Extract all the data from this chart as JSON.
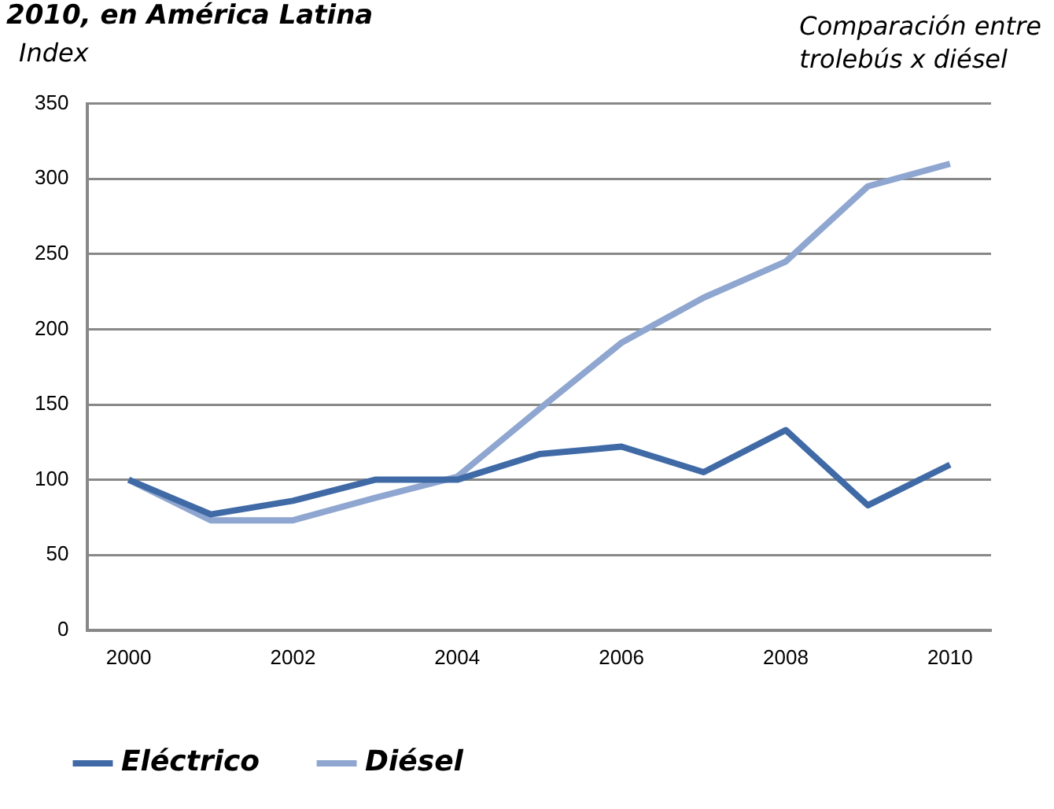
{
  "chart_data": {
    "type": "line",
    "title": "2010, en América Latina",
    "ylabel": "Index",
    "annotations": [
      "Comparación entre\ntrolebús x diésel"
    ],
    "x": [
      2000,
      2001,
      2002,
      2003,
      2004,
      2005,
      2006,
      2007,
      2008,
      2009,
      2010
    ],
    "series": [
      {
        "name": "Eléctrico",
        "color": "#3f6aa6",
        "values": [
          100,
          77,
          86,
          100,
          100,
          117,
          122,
          105,
          133,
          83,
          110
        ]
      },
      {
        "name": "Diésel",
        "color": "#8ea6d0",
        "values": [
          100,
          73,
          73,
          88,
          102,
          147,
          191,
          221,
          245,
          295,
          310
        ]
      }
    ],
    "xlim": [
      1999.5,
      2010.5
    ],
    "xticks": [
      2000,
      2002,
      2004,
      2006,
      2008,
      2010
    ],
    "ylim": [
      0,
      350
    ],
    "yticks": [
      0,
      50,
      100,
      150,
      200,
      250,
      300,
      350
    ],
    "grid": "y",
    "legend": "bottom",
    "marker": "none",
    "line_style": "solid"
  }
}
